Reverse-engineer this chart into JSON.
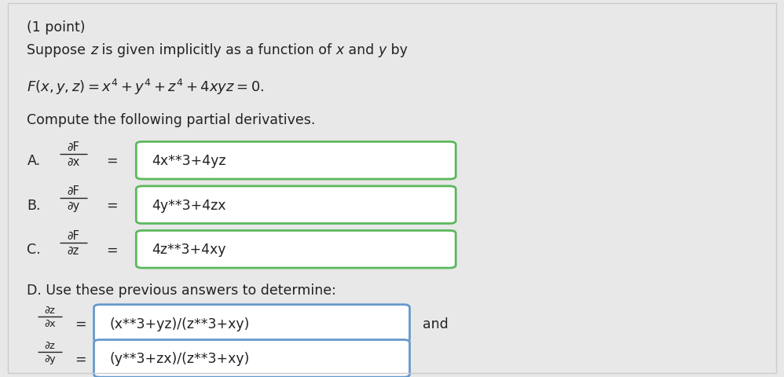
{
  "bg_color": "#e8e8e8",
  "panel_color": "#f5f5f5",
  "text_color": "#222222",
  "green_box_edge": "#5cb85c",
  "blue_box_edge": "#6699cc",
  "box_fill": "#ffffff",
  "line1": "(1 point)",
  "line2": "Suppose z is given implicitly as a function of x and y by",
  "line3": "$F(x, y, z) = x^4 + y^4 + z^4 + 4xyz = 0.$",
  "line4": "Compute the following partial derivatives.",
  "partA_answer": "4x**3+4yz",
  "partB_answer": "4y**3+4zx",
  "partC_answer": "4z**3+4xy",
  "partD_label": "D. Use these previous answers to determine:",
  "partD_answer1": "(x**3+yz)/(z**3+xy)",
  "partD_answer2": "(y**3+zx)/(z**3+xy)",
  "dF": "∂F",
  "dx": "∂x",
  "dy": "∂y",
  "dz": "∂z",
  "dz_top": "∂z",
  "fig_w": 9.98,
  "fig_h": 4.81,
  "dpi": 100
}
